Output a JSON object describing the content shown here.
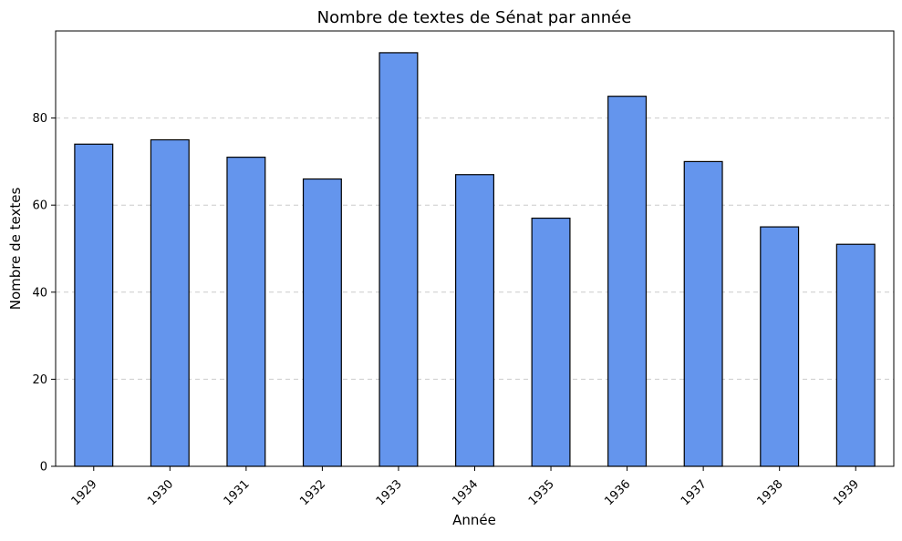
{
  "chart_data": {
    "type": "bar",
    "title": "Nombre de textes de Sénat par année",
    "xlabel": "Année",
    "ylabel": "Nombre de textes",
    "categories": [
      "1929",
      "1930",
      "1931",
      "1932",
      "1933",
      "1934",
      "1935",
      "1936",
      "1937",
      "1938",
      "1939"
    ],
    "values": [
      74,
      75,
      71,
      66,
      95,
      67,
      57,
      85,
      70,
      55,
      51
    ],
    "ylim": [
      0,
      100
    ],
    "yticks": [
      0,
      20,
      40,
      60,
      80
    ],
    "grid": "y-dashed",
    "bar_color": "#6495ED",
    "edge_color": "#000000",
    "x_tick_rotation_deg": 45
  }
}
